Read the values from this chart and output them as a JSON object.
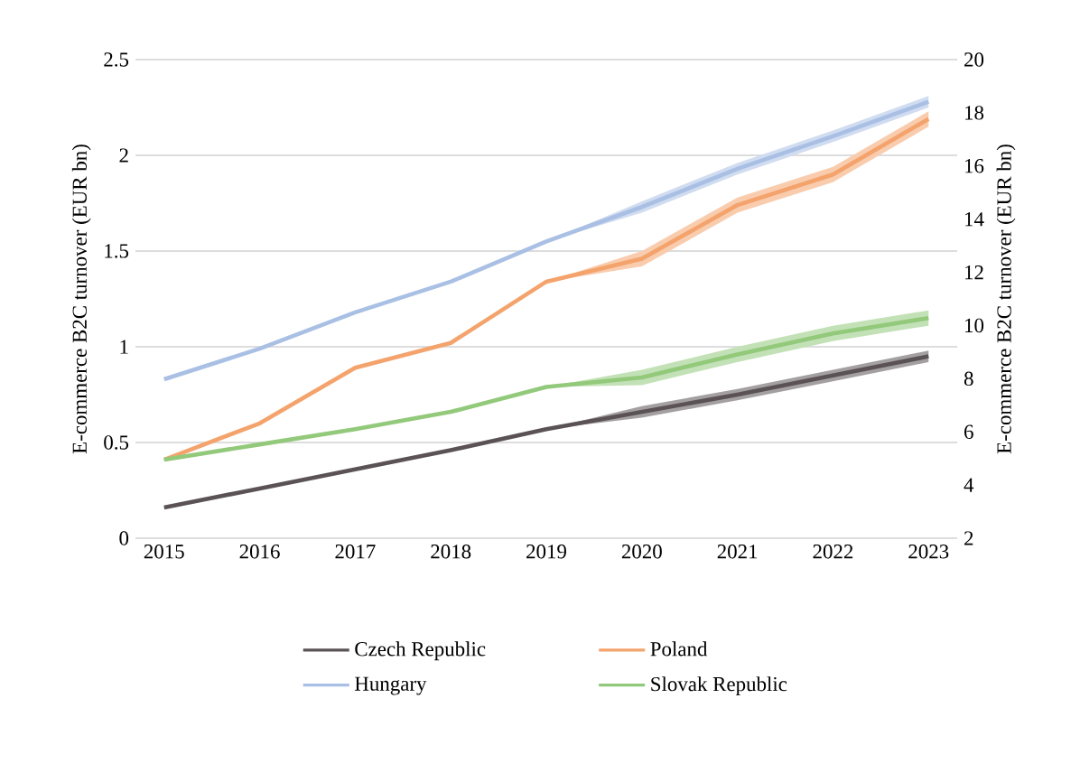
{
  "chart_data": {
    "type": "line",
    "ylabel": "E-commerce B2C turnover (EUR bn)",
    "y2label": "E-commerce B2C turnover (EUR bn)",
    "categories": [
      "2015",
      "2016",
      "2017",
      "2018",
      "2019",
      "2020",
      "2021",
      "2022",
      "2023"
    ],
    "ylim": [
      0,
      2.5
    ],
    "yticks": [
      0,
      0.5,
      1,
      1.5,
      2,
      2.5
    ],
    "y2lim": [
      2,
      20
    ],
    "y2ticks": [
      2,
      4,
      6,
      8,
      10,
      12,
      14,
      16,
      18,
      20
    ],
    "grid": "y",
    "legend": "bottom",
    "line_style": "solid",
    "marker": "none",
    "series": [
      {
        "name": "Czech Republic",
        "color": "#5a5254",
        "values": [
          0.16,
          0.26,
          0.36,
          0.46,
          0.57,
          0.66,
          0.75,
          0.85,
          0.95
        ],
        "lower": [
          null,
          null,
          null,
          null,
          0.57,
          0.63,
          0.72,
          0.82,
          0.92
        ],
        "upper": [
          null,
          null,
          null,
          null,
          0.57,
          0.69,
          0.78,
          0.88,
          0.98
        ]
      },
      {
        "name": "Poland",
        "color": "#f4a36c",
        "values": [
          0.41,
          0.6,
          0.89,
          1.02,
          1.34,
          1.46,
          1.74,
          1.9,
          2.19
        ],
        "lower": [
          null,
          null,
          null,
          null,
          1.34,
          1.42,
          1.7,
          1.86,
          2.15
        ],
        "upper": [
          null,
          null,
          null,
          null,
          1.34,
          1.5,
          1.78,
          1.94,
          2.23
        ]
      },
      {
        "name": "Hungary",
        "color": "#a9c0e4",
        "values": [
          0.83,
          0.99,
          1.18,
          1.34,
          1.55,
          1.73,
          1.93,
          2.1,
          2.28
        ],
        "lower": [
          null,
          null,
          null,
          null,
          1.55,
          1.7,
          1.9,
          2.07,
          2.25
        ],
        "upper": [
          null,
          null,
          null,
          null,
          1.55,
          1.76,
          1.96,
          2.13,
          2.31
        ]
      },
      {
        "name": "Slovak Republic",
        "color": "#92c97a",
        "values": [
          0.41,
          0.49,
          0.57,
          0.66,
          0.79,
          0.84,
          0.96,
          1.07,
          1.15
        ],
        "lower": [
          null,
          null,
          null,
          null,
          0.79,
          0.8,
          0.92,
          1.03,
          1.11
        ],
        "upper": [
          null,
          null,
          null,
          null,
          0.79,
          0.88,
          1.0,
          1.11,
          1.19
        ]
      }
    ]
  }
}
